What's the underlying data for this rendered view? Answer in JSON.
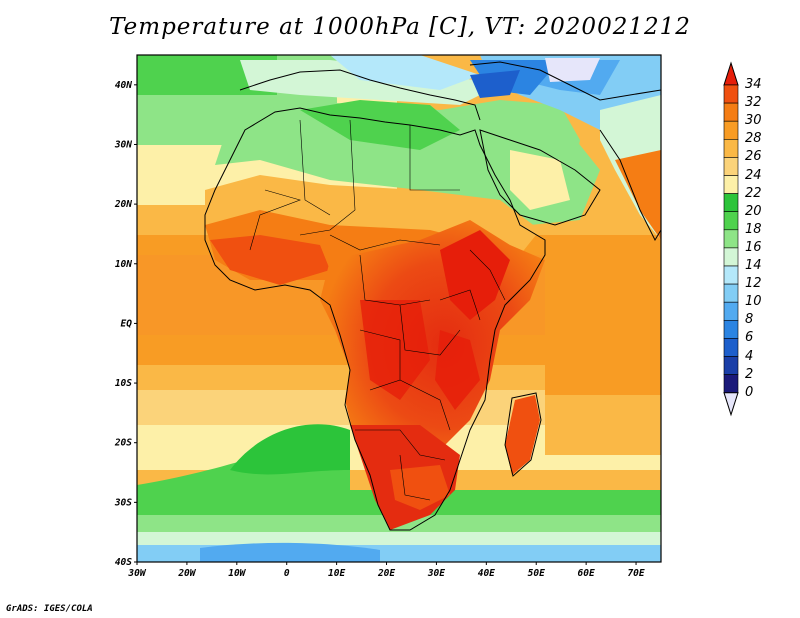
{
  "title": "Temperature at 1000hPa [C], VT: 2020021212",
  "credit": "GrADS: IGES/COLA",
  "map": {
    "lat_labels": [
      "40N",
      "30N",
      "20N",
      "10N",
      "EQ",
      "10S",
      "20S",
      "30S",
      "40S"
    ],
    "lon_labels": [
      "30W",
      "20W",
      "10W",
      "0",
      "10E",
      "20E",
      "30E",
      "40E",
      "50E",
      "60E",
      "70E"
    ],
    "lat_range": [
      -40,
      45
    ],
    "lon_range": [
      -30,
      75
    ],
    "region": "Africa and surrounding oceans"
  },
  "colorbar": {
    "labels": [
      "34",
      "32",
      "30",
      "28",
      "26",
      "24",
      "22",
      "20",
      "18",
      "16",
      "14",
      "12",
      "10",
      "8",
      "6",
      "4",
      "2",
      "0"
    ],
    "colors": [
      "#e61e0a",
      "#f05010",
      "#f57d14",
      "#f89c24",
      "#fab846",
      "#fbd37a",
      "#fdf0a8",
      "#2cc43a",
      "#4fd24e",
      "#8ee487",
      "#d3f6d6",
      "#b4e8fa",
      "#82cdf5",
      "#52aaf0",
      "#2b84e2",
      "#1d5fcc",
      "#1a3fa8",
      "#1b1a7a",
      "#e6e6fa"
    ]
  }
}
